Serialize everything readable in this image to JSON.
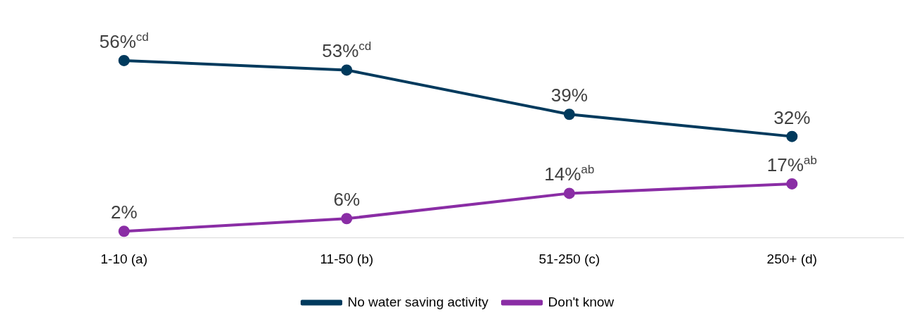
{
  "chart_data": {
    "type": "line",
    "categories": [
      "1-10 (a)",
      "11-50 (b)",
      "51-250 (c)",
      "250+ (d)"
    ],
    "series": [
      {
        "name": "No water saving activity",
        "color": "#003a5d",
        "values": [
          56,
          53,
          39,
          32
        ],
        "value_labels": [
          "56%$^{cd}$",
          "53%$^{cd}$",
          "39%",
          "32%"
        ]
      },
      {
        "name": "Don't know",
        "color": "#8a2da5",
        "values": [
          2,
          6,
          14,
          17
        ],
        "value_labels": [
          "2%",
          "6%",
          "14%$^{ab}$",
          "17%$^{ab}$"
        ]
      }
    ],
    "marker": "circle",
    "line_style": "solid",
    "legend": "bottom"
  }
}
